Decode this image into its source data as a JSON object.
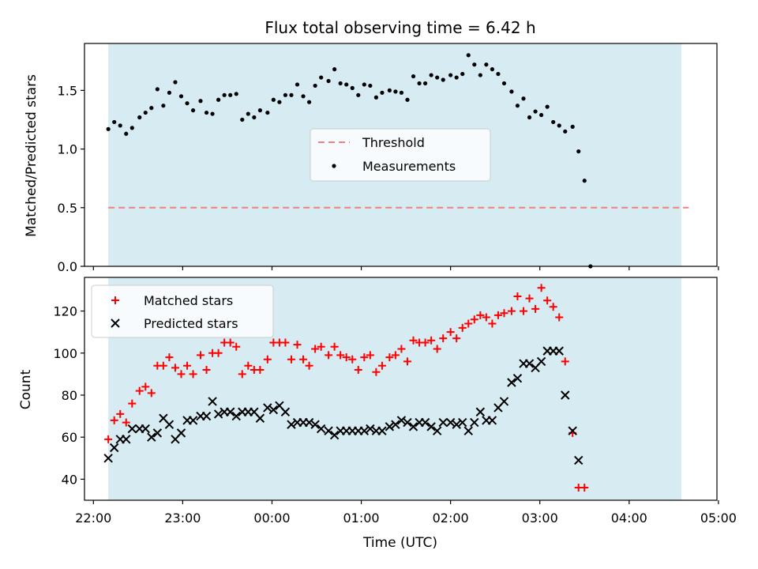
{
  "chart_data": [
    {
      "type": "scatter",
      "title": "Flux total observing time = 6.42 h",
      "xlabel": "",
      "ylabel": "Matched/Predicted stars",
      "xlim": [
        "21:54",
        "04:59"
      ],
      "ylim": [
        0,
        1.9
      ],
      "yticks": [
        0.0,
        0.5,
        1.0,
        1.5
      ],
      "yticklabels": [
        "0.0",
        "0.5",
        "1.0",
        "1.5"
      ],
      "shaded_span": [
        "22:10",
        "04:35"
      ],
      "shade_color": "#add8e6",
      "grid": false,
      "legend_position": "center",
      "legend": [
        "Threshold",
        "Measurements"
      ],
      "series": [
        {
          "name": "Threshold",
          "kind": "line",
          "color": "#f08080",
          "x": [
            "22:10",
            "04:40"
          ],
          "y": [
            0.5,
            0.5
          ]
        },
        {
          "name": "Measurements",
          "kind": "scatter",
          "color": "#000000",
          "points": [
            [
              "22:10",
              1.17
            ],
            [
              "22:14",
              1.23
            ],
            [
              "22:18",
              1.2
            ],
            [
              "22:22",
              1.13
            ],
            [
              "22:26",
              1.18
            ],
            [
              "22:31",
              1.27
            ],
            [
              "22:35",
              1.31
            ],
            [
              "22:39",
              1.35
            ],
            [
              "22:43",
              1.51
            ],
            [
              "22:47",
              1.37
            ],
            [
              "22:51",
              1.48
            ],
            [
              "22:55",
              1.57
            ],
            [
              "22:59",
              1.45
            ],
            [
              "23:03",
              1.39
            ],
            [
              "23:07",
              1.33
            ],
            [
              "23:12",
              1.41
            ],
            [
              "23:16",
              1.31
            ],
            [
              "23:20",
              1.3
            ],
            [
              "23:24",
              1.42
            ],
            [
              "23:28",
              1.46
            ],
            [
              "23:32",
              1.46
            ],
            [
              "23:36",
              1.47
            ],
            [
              "23:40",
              1.25
            ],
            [
              "23:44",
              1.3
            ],
            [
              "23:48",
              1.27
            ],
            [
              "23:52",
              1.33
            ],
            [
              "23:57",
              1.31
            ],
            [
              "00:01",
              1.42
            ],
            [
              "00:05",
              1.4
            ],
            [
              "00:09",
              1.46
            ],
            [
              "00:13",
              1.46
            ],
            [
              "00:17",
              1.55
            ],
            [
              "00:21",
              1.45
            ],
            [
              "00:25",
              1.4
            ],
            [
              "00:29",
              1.54
            ],
            [
              "00:33",
              1.61
            ],
            [
              "00:38",
              1.58
            ],
            [
              "00:42",
              1.68
            ],
            [
              "00:46",
              1.56
            ],
            [
              "00:50",
              1.55
            ],
            [
              "00:54",
              1.52
            ],
            [
              "00:58",
              1.46
            ],
            [
              "01:02",
              1.55
            ],
            [
              "01:06",
              1.54
            ],
            [
              "01:10",
              1.44
            ],
            [
              "01:14",
              1.48
            ],
            [
              "01:19",
              1.5
            ],
            [
              "01:23",
              1.49
            ],
            [
              "01:27",
              1.48
            ],
            [
              "01:31",
              1.42
            ],
            [
              "01:35",
              1.62
            ],
            [
              "01:39",
              1.56
            ],
            [
              "01:43",
              1.56
            ],
            [
              "01:47",
              1.63
            ],
            [
              "01:51",
              1.61
            ],
            [
              "01:55",
              1.59
            ],
            [
              "02:00",
              1.63
            ],
            [
              "02:04",
              1.61
            ],
            [
              "02:08",
              1.64
            ],
            [
              "02:12",
              1.8
            ],
            [
              "02:16",
              1.72
            ],
            [
              "02:20",
              1.63
            ],
            [
              "02:24",
              1.72
            ],
            [
              "02:28",
              1.68
            ],
            [
              "02:32",
              1.64
            ],
            [
              "02:36",
              1.56
            ],
            [
              "02:41",
              1.49
            ],
            [
              "02:45",
              1.37
            ],
            [
              "02:49",
              1.43
            ],
            [
              "02:53",
              1.27
            ],
            [
              "02:57",
              1.32
            ],
            [
              "03:01",
              1.29
            ],
            [
              "03:05",
              1.36
            ],
            [
              "03:09",
              1.23
            ],
            [
              "03:13",
              1.2
            ],
            [
              "03:17",
              1.15
            ],
            [
              "03:22",
              1.19
            ],
            [
              "03:26",
              0.98
            ],
            [
              "03:30",
              0.73
            ],
            [
              "03:34",
              0.0
            ]
          ]
        }
      ]
    },
    {
      "type": "scatter",
      "title": "",
      "xlabel": "Time (UTC)",
      "ylabel": "Count",
      "xlim": [
        "21:54",
        "04:59"
      ],
      "xticks": [
        "22:00",
        "23:00",
        "00:00",
        "01:00",
        "02:00",
        "03:00",
        "04:00",
        "05:00"
      ],
      "xticklabels": [
        "22:00",
        "23:00",
        "00:00",
        "01:00",
        "02:00",
        "03:00",
        "04:00",
        "05:00"
      ],
      "ylim": [
        30,
        136
      ],
      "yticks": [
        40,
        60,
        80,
        100,
        120
      ],
      "yticklabels": [
        "40",
        "60",
        "80",
        "100",
        "120"
      ],
      "shaded_span": [
        "22:10",
        "04:35"
      ],
      "shade_color": "#add8e6",
      "grid": false,
      "legend_position": "upper left",
      "legend": [
        "Matched stars",
        "Predicted stars"
      ],
      "series": [
        {
          "name": "Matched stars",
          "marker": "plus",
          "color": "#ff0000",
          "points": [
            [
              "22:10",
              59
            ],
            [
              "22:14",
              68
            ],
            [
              "22:18",
              71
            ],
            [
              "22:22",
              67
            ],
            [
              "22:26",
              76
            ],
            [
              "22:31",
              82
            ],
            [
              "22:35",
              84
            ],
            [
              "22:39",
              81
            ],
            [
              "22:43",
              94
            ],
            [
              "22:47",
              94
            ],
            [
              "22:51",
              98
            ],
            [
              "22:55",
              93
            ],
            [
              "22:59",
              90
            ],
            [
              "23:03",
              94
            ],
            [
              "23:07",
              90
            ],
            [
              "23:12",
              99
            ],
            [
              "23:16",
              92
            ],
            [
              "23:20",
              100
            ],
            [
              "23:24",
              100
            ],
            [
              "23:28",
              105
            ],
            [
              "23:32",
              105
            ],
            [
              "23:36",
              103
            ],
            [
              "23:40",
              90
            ],
            [
              "23:44",
              94
            ],
            [
              "23:48",
              92
            ],
            [
              "23:52",
              92
            ],
            [
              "23:57",
              97
            ],
            [
              "00:01",
              105
            ],
            [
              "00:05",
              105
            ],
            [
              "00:09",
              105
            ],
            [
              "00:13",
              97
            ],
            [
              "00:17",
              104
            ],
            [
              "00:21",
              97
            ],
            [
              "00:25",
              94
            ],
            [
              "00:29",
              102
            ],
            [
              "00:33",
              103
            ],
            [
              "00:38",
              99
            ],
            [
              "00:42",
              103
            ],
            [
              "00:46",
              99
            ],
            [
              "00:50",
              98
            ],
            [
              "00:54",
              97
            ],
            [
              "00:58",
              92
            ],
            [
              "01:02",
              98
            ],
            [
              "01:06",
              99
            ],
            [
              "01:10",
              91
            ],
            [
              "01:14",
              94
            ],
            [
              "01:19",
              98
            ],
            [
              "01:23",
              99
            ],
            [
              "01:27",
              102
            ],
            [
              "01:31",
              96
            ],
            [
              "01:35",
              106
            ],
            [
              "01:39",
              105
            ],
            [
              "01:43",
              105
            ],
            [
              "01:47",
              106
            ],
            [
              "01:51",
              102
            ],
            [
              "01:55",
              107
            ],
            [
              "02:00",
              110
            ],
            [
              "02:04",
              107
            ],
            [
              "02:08",
              112
            ],
            [
              "02:12",
              114
            ],
            [
              "02:16",
              116
            ],
            [
              "02:20",
              118
            ],
            [
              "02:24",
              117
            ],
            [
              "02:28",
              114
            ],
            [
              "02:32",
              118
            ],
            [
              "02:36",
              119
            ],
            [
              "02:41",
              120
            ],
            [
              "02:45",
              127
            ],
            [
              "02:49",
              120
            ],
            [
              "02:53",
              126
            ],
            [
              "02:57",
              121
            ],
            [
              "03:01",
              131
            ],
            [
              "03:05",
              125
            ],
            [
              "03:09",
              122
            ],
            [
              "03:13",
              117
            ],
            [
              "03:17",
              96
            ],
            [
              "03:22",
              62
            ],
            [
              "03:26",
              36
            ],
            [
              "03:30",
              36
            ]
          ]
        },
        {
          "name": "Predicted stars",
          "marker": "x",
          "color": "#000000",
          "points": [
            [
              "22:10",
              50
            ],
            [
              "22:14",
              55
            ],
            [
              "22:18",
              59
            ],
            [
              "22:22",
              59
            ],
            [
              "22:26",
              64
            ],
            [
              "22:31",
              64
            ],
            [
              "22:35",
              64
            ],
            [
              "22:39",
              60
            ],
            [
              "22:43",
              62
            ],
            [
              "22:47",
              69
            ],
            [
              "22:51",
              66
            ],
            [
              "22:55",
              59
            ],
            [
              "22:59",
              62
            ],
            [
              "23:03",
              68
            ],
            [
              "23:07",
              68
            ],
            [
              "23:12",
              70
            ],
            [
              "23:16",
              70
            ],
            [
              "23:20",
              77
            ],
            [
              "23:24",
              71
            ],
            [
              "23:28",
              72
            ],
            [
              "23:32",
              72
            ],
            [
              "23:36",
              70
            ],
            [
              "23:40",
              72
            ],
            [
              "23:44",
              72
            ],
            [
              "23:48",
              72
            ],
            [
              "23:52",
              69
            ],
            [
              "23:57",
              74
            ],
            [
              "00:01",
              73
            ],
            [
              "00:05",
              75
            ],
            [
              "00:09",
              72
            ],
            [
              "00:13",
              66
            ],
            [
              "00:17",
              67
            ],
            [
              "00:21",
              67
            ],
            [
              "00:25",
              67
            ],
            [
              "00:29",
              66
            ],
            [
              "00:33",
              64
            ],
            [
              "00:38",
              63
            ],
            [
              "00:42",
              61
            ],
            [
              "00:46",
              63
            ],
            [
              "00:50",
              63
            ],
            [
              "00:54",
              63
            ],
            [
              "00:58",
              63
            ],
            [
              "01:02",
              63
            ],
            [
              "01:06",
              64
            ],
            [
              "01:10",
              63
            ],
            [
              "01:14",
              63
            ],
            [
              "01:19",
              65
            ],
            [
              "01:23",
              66
            ],
            [
              "01:27",
              68
            ],
            [
              "01:31",
              67
            ],
            [
              "01:35",
              65
            ],
            [
              "01:39",
              67
            ],
            [
              "01:43",
              67
            ],
            [
              "01:47",
              65
            ],
            [
              "01:51",
              63
            ],
            [
              "01:55",
              67
            ],
            [
              "02:00",
              67
            ],
            [
              "02:04",
              66
            ],
            [
              "02:08",
              67
            ],
            [
              "02:12",
              63
            ],
            [
              "02:16",
              67
            ],
            [
              "02:20",
              72
            ],
            [
              "02:24",
              68
            ],
            [
              "02:28",
              68
            ],
            [
              "02:32",
              74
            ],
            [
              "02:36",
              77
            ],
            [
              "02:41",
              86
            ],
            [
              "02:45",
              88
            ],
            [
              "02:49",
              95
            ],
            [
              "02:53",
              95
            ],
            [
              "02:57",
              93
            ],
            [
              "03:01",
              96
            ],
            [
              "03:05",
              101
            ],
            [
              "03:09",
              101
            ],
            [
              "03:13",
              101
            ],
            [
              "03:17",
              80
            ],
            [
              "03:22",
              63
            ],
            [
              "03:26",
              49
            ]
          ]
        }
      ]
    }
  ]
}
